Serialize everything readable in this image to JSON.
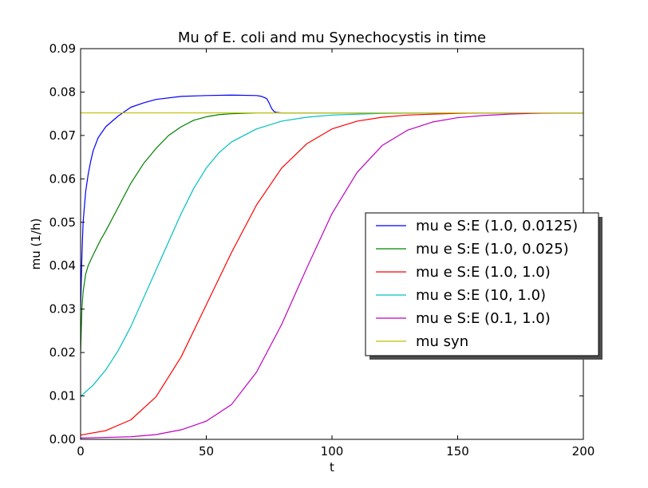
{
  "chart_data": {
    "type": "line",
    "title": "Mu of E. coli and mu Synechocystis in time",
    "xlabel": "t",
    "ylabel": "mu (1/h)",
    "xlim": [
      0,
      200
    ],
    "ylim": [
      0,
      0.09
    ],
    "xticks": [
      0,
      50,
      100,
      150,
      200
    ],
    "yticks": [
      0.0,
      0.01,
      0.02,
      0.03,
      0.04,
      0.05,
      0.06,
      0.07,
      0.08,
      0.09
    ],
    "xtick_labels": [
      "0",
      "50",
      "100",
      "150",
      "200"
    ],
    "ytick_labels": [
      "0.00",
      "0.01",
      "0.02",
      "0.03",
      "0.04",
      "0.05",
      "0.06",
      "0.07",
      "0.08",
      "0.09"
    ],
    "grid": false,
    "legend_position": "center-right",
    "series": [
      {
        "name": "mu e S:E (1.0, 0.0125)",
        "color": "#0000ff",
        "x": [
          0,
          0.5,
          1,
          2,
          3,
          4,
          5,
          7,
          10,
          15,
          20,
          25,
          30,
          40,
          50,
          60,
          70,
          72,
          74,
          75,
          76,
          77,
          78,
          80,
          90,
          100,
          150,
          200
        ],
        "y": [
          0.03,
          0.042,
          0.05,
          0.057,
          0.061,
          0.064,
          0.0665,
          0.0695,
          0.072,
          0.0745,
          0.0765,
          0.0775,
          0.0783,
          0.079,
          0.0792,
          0.0793,
          0.0792,
          0.079,
          0.0785,
          0.0775,
          0.0762,
          0.0755,
          0.0753,
          0.0752,
          0.0752,
          0.0752,
          0.0752,
          0.0752
        ]
      },
      {
        "name": "mu e S:E (1.0, 0.025)",
        "color": "#008000",
        "x": [
          0,
          0.5,
          1,
          2,
          3,
          5,
          8,
          10,
          15,
          20,
          25,
          30,
          35,
          40,
          45,
          50,
          55,
          60,
          70,
          80,
          100,
          150,
          200
        ],
        "y": [
          0.02,
          0.03,
          0.034,
          0.038,
          0.04,
          0.0425,
          0.046,
          0.048,
          0.0535,
          0.059,
          0.0635,
          0.067,
          0.07,
          0.072,
          0.0735,
          0.0743,
          0.0748,
          0.075,
          0.0752,
          0.0752,
          0.0752,
          0.0752,
          0.0752
        ]
      },
      {
        "name": "mu e S:E (1.0, 1.0)",
        "color": "#ff0000",
        "x": [
          0,
          10,
          20,
          30,
          40,
          50,
          60,
          70,
          80,
          90,
          100,
          110,
          120,
          130,
          140,
          150,
          160,
          170,
          180,
          200
        ],
        "y": [
          0.001,
          0.002,
          0.0045,
          0.0098,
          0.019,
          0.031,
          0.043,
          0.054,
          0.0625,
          0.0681,
          0.0715,
          0.0733,
          0.0742,
          0.0747,
          0.0749,
          0.0751,
          0.0752,
          0.0752,
          0.0752,
          0.0752
        ]
      },
      {
        "name": "mu e S:E (10, 1.0)",
        "color": "#00bfbf",
        "x": [
          0,
          5,
          10,
          15,
          20,
          25,
          30,
          35,
          40,
          45,
          50,
          55,
          60,
          70,
          80,
          90,
          100,
          120,
          150,
          200
        ],
        "y": [
          0.0099,
          0.0125,
          0.016,
          0.0205,
          0.026,
          0.0325,
          0.039,
          0.0455,
          0.052,
          0.0578,
          0.0625,
          0.066,
          0.0685,
          0.0715,
          0.0733,
          0.0742,
          0.0747,
          0.0751,
          0.0752,
          0.0752
        ]
      },
      {
        "name": "mu e S:E (0.1, 1.0)",
        "color": "#bf00bf",
        "x": [
          0,
          20,
          30,
          40,
          50,
          60,
          70,
          80,
          90,
          100,
          110,
          120,
          130,
          140,
          150,
          160,
          170,
          180,
          190,
          200
        ],
        "y": [
          0.0003,
          0.0006,
          0.0011,
          0.0022,
          0.0042,
          0.008,
          0.0155,
          0.0265,
          0.0395,
          0.052,
          0.0615,
          0.0677,
          0.0712,
          0.0731,
          0.0741,
          0.0746,
          0.0749,
          0.0751,
          0.0752,
          0.0752
        ]
      },
      {
        "name": "mu syn",
        "color": "#bfbf00",
        "x": [
          0,
          200
        ],
        "y": [
          0.0752,
          0.0752
        ]
      }
    ]
  }
}
